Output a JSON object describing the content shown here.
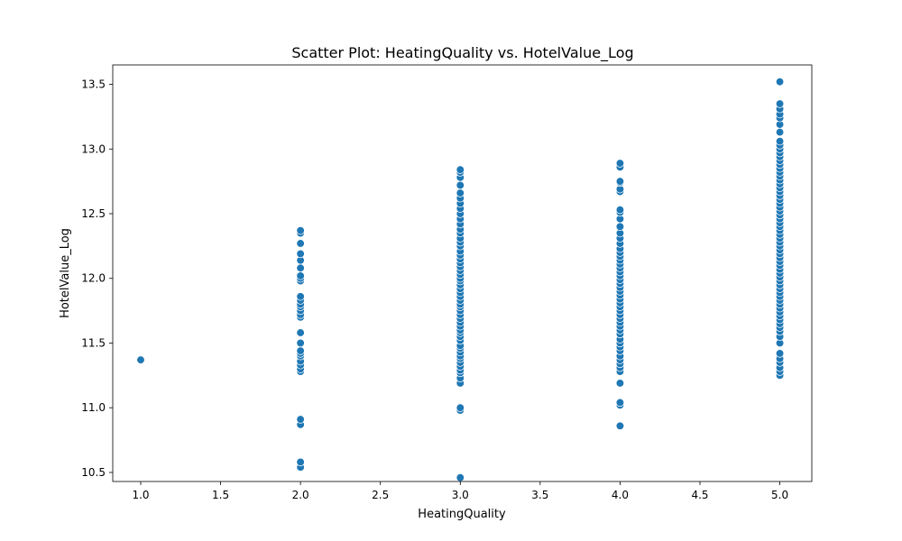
{
  "chart_data": {
    "type": "scatter",
    "title": "Scatter Plot: HeatingQuality vs. HotelValue_Log",
    "xlabel": "HeatingQuality",
    "ylabel": "HotelValue_Log",
    "xlim": [
      0.825,
      5.2
    ],
    "ylim": [
      10.43,
      13.65
    ],
    "x_ticks": [
      1.0,
      1.5,
      2.0,
      2.5,
      3.0,
      3.5,
      4.0,
      4.5,
      5.0
    ],
    "x_tick_labels": [
      "1.0",
      "1.5",
      "2.0",
      "2.5",
      "3.0",
      "3.5",
      "4.0",
      "4.5",
      "5.0"
    ],
    "y_ticks": [
      10.5,
      11.0,
      11.5,
      12.0,
      12.5,
      13.0,
      13.5
    ],
    "y_tick_labels": [
      "10.5",
      "11.0",
      "11.5",
      "12.0",
      "12.5",
      "13.0",
      "13.5"
    ],
    "grid": false,
    "point_color": "#1f77b4",
    "points": {
      "1": [
        11.37
      ],
      "2": [
        10.54,
        10.58,
        10.87,
        10.91,
        11.28,
        11.3,
        11.33,
        11.36,
        11.4,
        11.42,
        11.44,
        11.5,
        11.58,
        11.7,
        11.72,
        11.75,
        11.78,
        11.8,
        11.83,
        11.86,
        11.98,
        12.0,
        12.02,
        12.08,
        12.14,
        12.19,
        12.27,
        12.35,
        12.37
      ],
      "3": [
        10.46,
        10.98,
        11.0,
        11.19,
        11.23,
        11.27,
        11.29,
        11.32,
        11.35,
        11.38,
        11.4,
        11.43,
        11.46,
        11.48,
        11.52,
        11.55,
        11.58,
        11.6,
        11.63,
        11.66,
        11.69,
        11.72,
        11.75,
        11.78,
        11.8,
        11.83,
        11.86,
        11.89,
        11.92,
        11.95,
        11.98,
        12.0,
        12.03,
        12.06,
        12.09,
        12.12,
        12.15,
        12.18,
        12.21,
        12.25,
        12.28,
        12.31,
        12.35,
        12.38,
        12.42,
        12.46,
        12.5,
        12.54,
        12.58,
        12.62,
        12.66,
        12.72,
        12.78,
        12.82,
        12.84
      ],
      "4": [
        10.86,
        11.02,
        11.04,
        11.19,
        11.28,
        11.31,
        11.34,
        11.37,
        11.4,
        11.44,
        11.47,
        11.5,
        11.53,
        11.57,
        11.6,
        11.63,
        11.66,
        11.69,
        11.72,
        11.75,
        11.78,
        11.81,
        11.84,
        11.87,
        11.9,
        11.93,
        11.96,
        11.99,
        12.02,
        12.05,
        12.08,
        12.11,
        12.14,
        12.17,
        12.2,
        12.23,
        12.27,
        12.31,
        12.35,
        12.4,
        12.46,
        12.51,
        12.53,
        12.67,
        12.69,
        12.74,
        12.75,
        12.86,
        12.89
      ],
      "5": [
        11.25,
        11.28,
        11.31,
        11.35,
        11.38,
        11.42,
        11.5,
        11.55,
        11.59,
        11.62,
        11.65,
        11.68,
        11.71,
        11.74,
        11.77,
        11.8,
        11.83,
        11.86,
        11.89,
        11.92,
        11.95,
        11.98,
        12.01,
        12.04,
        12.07,
        12.1,
        12.13,
        12.16,
        12.19,
        12.22,
        12.25,
        12.28,
        12.31,
        12.34,
        12.37,
        12.4,
        12.43,
        12.46,
        12.49,
        12.52,
        12.55,
        12.58,
        12.61,
        12.64,
        12.67,
        12.7,
        12.73,
        12.76,
        12.79,
        12.82,
        12.85,
        12.88,
        12.91,
        12.94,
        12.97,
        13.0,
        13.03,
        13.06,
        13.13,
        13.19,
        13.24,
        13.27,
        13.31,
        13.35,
        13.52
      ]
    }
  }
}
